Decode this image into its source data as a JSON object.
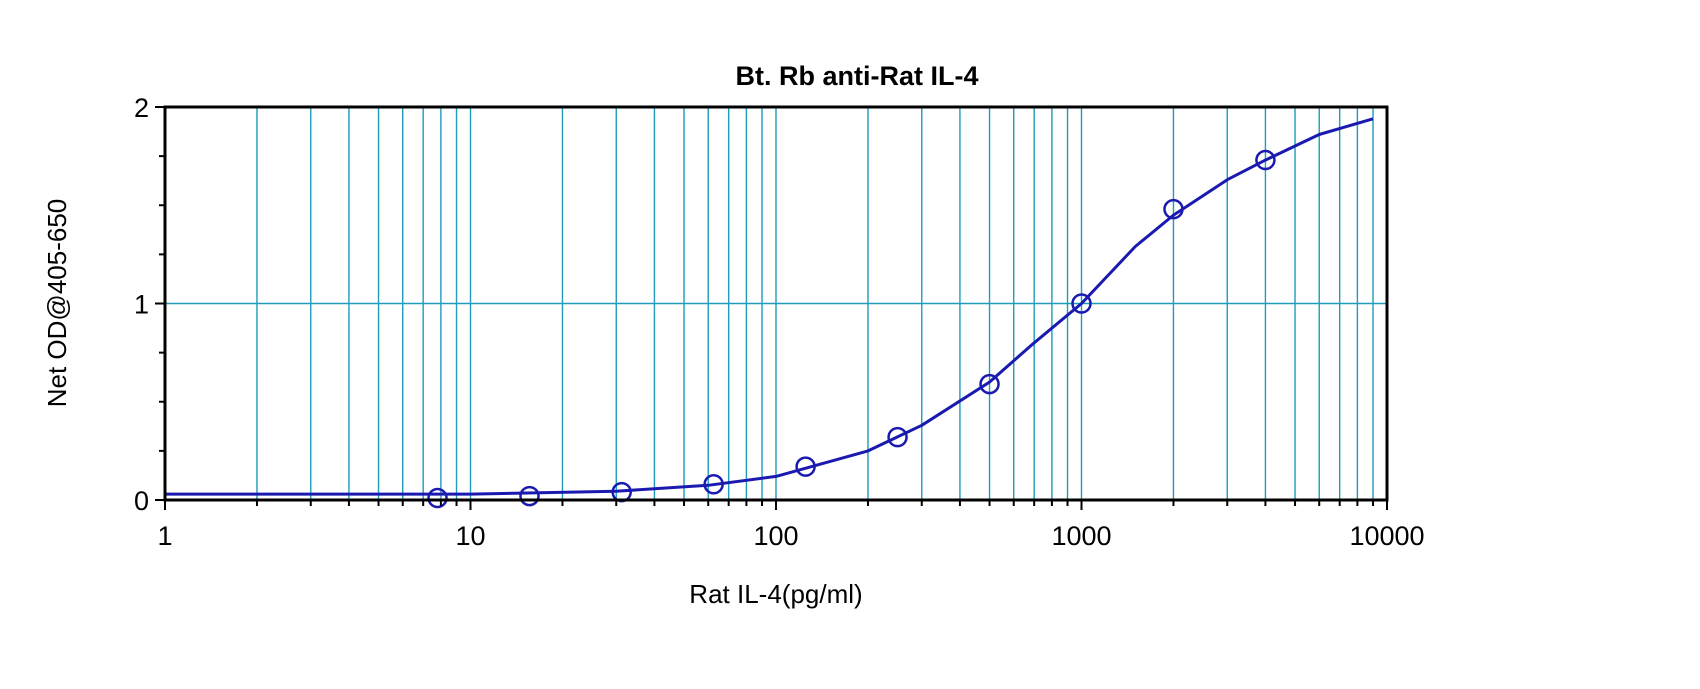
{
  "chart_data": {
    "type": "scatter",
    "title": "Bt. Rb anti-Rat IL-4",
    "xlabel": "Rat IL-4(pg/ml)",
    "ylabel": "Net OD@405-650",
    "x_scale": "log",
    "xlim": [
      1,
      10000
    ],
    "ylim": [
      0,
      2
    ],
    "x_ticks": [
      1,
      10,
      100,
      1000,
      10000
    ],
    "x_tick_labels": [
      "1",
      "10",
      "100",
      "1000",
      "10000"
    ],
    "y_ticks": [
      0,
      1,
      2
    ],
    "y_tick_labels": [
      "0",
      "1",
      "2"
    ],
    "grid": true,
    "legend": "none",
    "series": [
      {
        "type": "scatter",
        "x": [
          7.8,
          15.6,
          31.25,
          62.5,
          125,
          250,
          500,
          1000,
          2000,
          4000
        ],
        "y": [
          0.01,
          0.02,
          0.04,
          0.08,
          0.17,
          0.32,
          0.59,
          1.0,
          1.48,
          1.73
        ]
      },
      {
        "type": "line",
        "x": [
          1,
          10,
          30,
          60,
          100,
          200,
          300,
          500,
          700,
          1000,
          1500,
          2000,
          3000,
          4000,
          6000,
          9000
        ],
        "y": [
          0.03,
          0.03,
          0.045,
          0.075,
          0.12,
          0.25,
          0.38,
          0.6,
          0.8,
          1.0,
          1.29,
          1.45,
          1.63,
          1.73,
          1.86,
          1.94
        ]
      }
    ],
    "colors": {
      "grid": "#1e9bbd",
      "series": "#1a1ab0",
      "axis": "#000000"
    }
  }
}
